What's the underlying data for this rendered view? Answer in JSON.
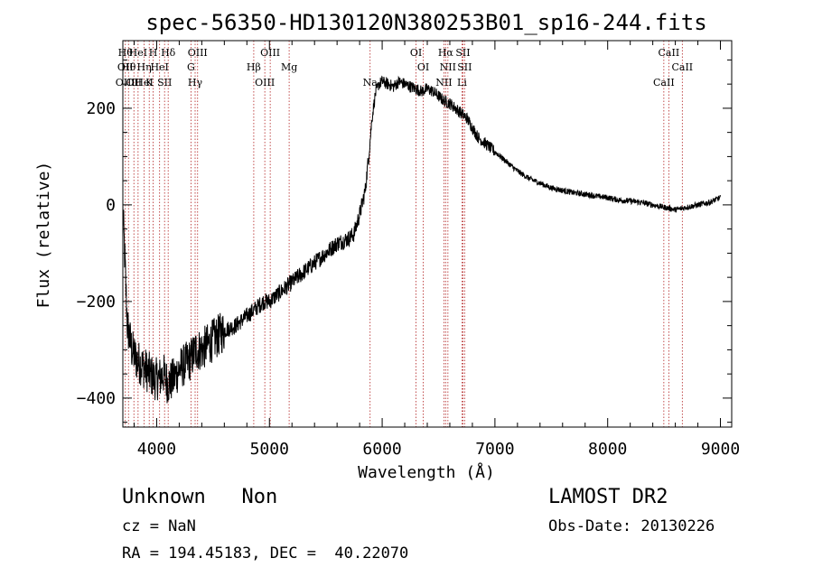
{
  "chart_data": {
    "type": "line",
    "title": "spec-56350-HD130120N380253B01_sp16-244.fits",
    "xlabel": "Wavelength (Å)",
    "ylabel": "Flux (relative)",
    "xlim": [
      3700,
      9100
    ],
    "ylim": [
      -460,
      340
    ],
    "xticks": [
      4000,
      5000,
      6000,
      7000,
      8000,
      9000
    ],
    "xtick_labels": [
      "4000",
      "5000",
      "6000",
      "7000",
      "8000",
      "9000"
    ],
    "yticks": [
      -400,
      -200,
      0,
      200
    ],
    "ytick_labels": [
      "−400",
      "−200",
      "0",
      "200"
    ],
    "grid": false,
    "series": [
      {
        "color": "#000000",
        "x": [
          3700,
          3740,
          3780,
          3820,
          3860,
          3900,
          3940,
          3980,
          4020,
          4060,
          4100,
          4150,
          4200,
          4250,
          4300,
          4350,
          4400,
          4450,
          4500,
          4550,
          4600,
          4650,
          4700,
          4750,
          4800,
          4850,
          4900,
          4950,
          5000,
          5050,
          5100,
          5150,
          5200,
          5250,
          5300,
          5350,
          5400,
          5450,
          5500,
          5550,
          5600,
          5650,
          5700,
          5750,
          5800,
          5850,
          5880,
          5910,
          5940,
          5970,
          6000,
          6050,
          6100,
          6150,
          6200,
          6250,
          6300,
          6350,
          6400,
          6450,
          6500,
          6550,
          6600,
          6650,
          6700,
          6750,
          6800,
          6850,
          6900,
          6950,
          7000,
          7050,
          7100,
          7150,
          7200,
          7300,
          7400,
          7500,
          7600,
          7700,
          7800,
          7900,
          8000,
          8100,
          8200,
          8300,
          8400,
          8500,
          8600,
          8700,
          8800,
          8900,
          8950,
          9000
        ],
        "y": [
          -10,
          -250,
          -300,
          -320,
          -330,
          -340,
          -350,
          -360,
          -360,
          -350,
          -370,
          -360,
          -340,
          -330,
          -320,
          -300,
          -300,
          -290,
          -280,
          -270,
          -260,
          -255,
          -250,
          -240,
          -230,
          -220,
          -210,
          -200,
          -200,
          -190,
          -180,
          -170,
          -160,
          -150,
          -140,
          -130,
          -120,
          -110,
          -100,
          -90,
          -80,
          -75,
          -70,
          -60,
          -20,
          30,
          100,
          180,
          230,
          250,
          255,
          250,
          245,
          255,
          250,
          245,
          240,
          235,
          240,
          235,
          225,
          215,
          210,
          200,
          190,
          180,
          160,
          140,
          130,
          120,
          110,
          100,
          90,
          80,
          70,
          55,
          45,
          35,
          30,
          25,
          22,
          18,
          15,
          10,
          8,
          5,
          0,
          -5,
          -10,
          -5,
          0,
          5,
          10,
          15
        ]
      }
    ],
    "annotations": [
      {
        "text": "Unknown   Non"
      },
      {
        "text": "cz = NaN"
      },
      {
        "text": "RA = 194.45183, DEC =  40.22070"
      },
      {
        "text": "LAMOST DR2"
      },
      {
        "text": "Obs-Date: 20130226"
      }
    ],
    "lines": [
      {
        "x": 3722,
        "labels": [
          "Hθ",
          "OII",
          "OIII"
        ]
      },
      {
        "x": 3750,
        "labels": [
          "Hθ"
        ]
      },
      {
        "x": 3798,
        "labels": [
          "OII"
        ]
      },
      {
        "x": 3835,
        "labels": [
          "HeI"
        ]
      },
      {
        "x": 3889,
        "labels": [
          "Hη",
          "HeI"
        ]
      },
      {
        "x": 3934,
        "labels": [
          "K"
        ]
      },
      {
        "x": 3969,
        "labels": [
          "H"
        ]
      },
      {
        "x": 4026,
        "labels": [
          "HeI"
        ]
      },
      {
        "x": 4070,
        "labels": [
          "SII"
        ]
      },
      {
        "x": 4102,
        "labels": [
          "Hδ"
        ]
      },
      {
        "x": 4304,
        "labels": [
          "G"
        ]
      },
      {
        "x": 4341,
        "labels": [
          "Hγ"
        ]
      },
      {
        "x": 4363,
        "labels": [
          "OIII"
        ]
      },
      {
        "x": 4861,
        "labels": [
          "Hβ"
        ]
      },
      {
        "x": 4959,
        "labels": [
          "OIII"
        ]
      },
      {
        "x": 5007,
        "labels": [
          "OIII"
        ]
      },
      {
        "x": 5175,
        "labels": [
          "Mg"
        ]
      },
      {
        "x": 5893,
        "labels": [
          "Na"
        ]
      },
      {
        "x": 6300,
        "labels": [
          "OI"
        ]
      },
      {
        "x": 6364,
        "labels": [
          "OI"
        ]
      },
      {
        "x": 6548,
        "labels": [
          "NII"
        ]
      },
      {
        "x": 6563,
        "labels": [
          "Hα"
        ]
      },
      {
        "x": 6583,
        "labels": [
          "NII"
        ]
      },
      {
        "x": 6708,
        "labels": [
          "Li"
        ]
      },
      {
        "x": 6716,
        "labels": [
          "SII"
        ]
      },
      {
        "x": 6731,
        "labels": [
          "SII"
        ]
      },
      {
        "x": 8498,
        "labels": [
          "CaII"
        ]
      },
      {
        "x": 8542,
        "labels": [
          "CaII"
        ]
      },
      {
        "x": 8662,
        "labels": [
          "CaII"
        ]
      }
    ]
  }
}
